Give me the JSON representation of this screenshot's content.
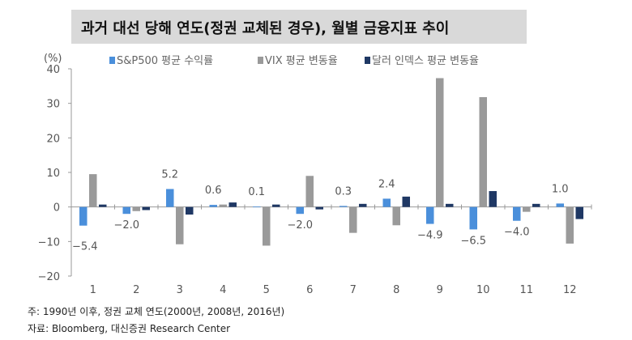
{
  "chart_data": {
    "type": "bar",
    "title": "과거 대선 당해 연도(정권 교체된 경우), 월별 금융지표 추이",
    "ylabel": "(%)",
    "xlabel": "",
    "ylim": [
      -20,
      40
    ],
    "yticks": [
      -20,
      -10,
      0,
      10,
      20,
      30,
      40
    ],
    "grid": false,
    "legend": "top",
    "categories": [
      "1",
      "2",
      "3",
      "4",
      "5",
      "6",
      "7",
      "8",
      "9",
      "10",
      "11",
      "12"
    ],
    "series": [
      {
        "name": "S&P500 평균 수익률",
        "color": "#4a8fdb",
        "values": [
          -5.4,
          -2.0,
          5.2,
          0.6,
          0.1,
          -2.0,
          0.3,
          2.4,
          -4.9,
          -6.5,
          -4.0,
          1.0
        ],
        "labels": [
          "-5.4",
          "-2.0",
          "5.2",
          "0.6",
          "0.1",
          "-2.0",
          "0.3",
          "2.4",
          "-4.9",
          "-6.5",
          "-4.0",
          "1.0"
        ]
      },
      {
        "name": "VIX 평균 변동율",
        "color": "#9a9a9a",
        "values": [
          9.5,
          -1.2,
          -10.8,
          0.7,
          -11.2,
          9.0,
          -7.5,
          -5.3,
          37.3,
          31.8,
          -1.4,
          -10.6
        ]
      },
      {
        "name": "달러 인덱스 평균 변동율",
        "color": "#1f3864",
        "values": [
          0.7,
          -0.9,
          -2.2,
          1.3,
          0.7,
          -0.7,
          0.9,
          3.0,
          0.9,
          4.6,
          0.9,
          -3.5
        ]
      }
    ]
  },
  "notes": {
    "note": "주: 1990년 이후, 정권 교체 연도(2000년, 2008년, 2016년)",
    "source": "자료: Bloomberg, 대신증권 Research Center"
  }
}
